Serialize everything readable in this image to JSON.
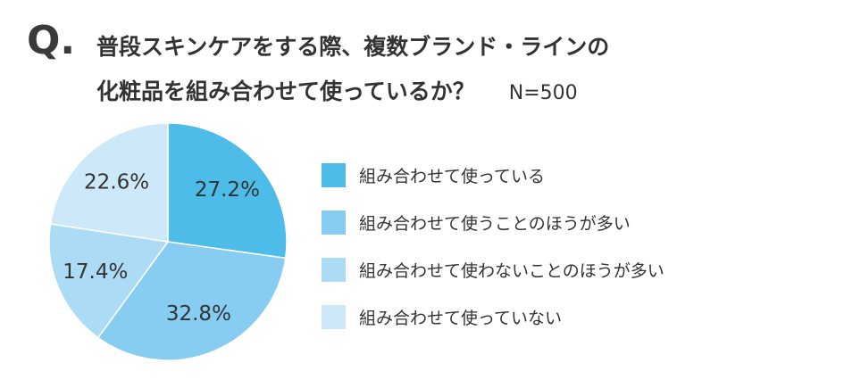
{
  "header": {
    "q_mark": "Q.",
    "question_line1": "普段スキンケアをする際、複数ブランド・ラインの",
    "question_line2": "化粧品を組み合わせて使っているか？",
    "sample_size": "N=500"
  },
  "chart_data": {
    "type": "pie",
    "title": "普段スキンケアをする際、複数ブランド・ラインの化粧品を組み合わせて使っているか？",
    "sample_size": "N=500",
    "unit": "%",
    "start": "12 o'clock",
    "direction": "clockwise",
    "legend_position": "right",
    "slices": [
      {
        "label": "組み合わせて使っている",
        "value": 27.2,
        "display": "27.2%",
        "color": "#4dbce9"
      },
      {
        "label": "組み合わせて使うことのほうが多い",
        "value": 32.8,
        "display": "32.8%",
        "color": "#86cdf1"
      },
      {
        "label": "組み合わせて使わないことのほうが多い",
        "value": 17.4,
        "display": "17.4%",
        "color": "#acdcf5"
      },
      {
        "label": "組み合わせて使っていない",
        "value": 22.6,
        "display": "22.6%",
        "color": "#cde9f9"
      }
    ]
  }
}
